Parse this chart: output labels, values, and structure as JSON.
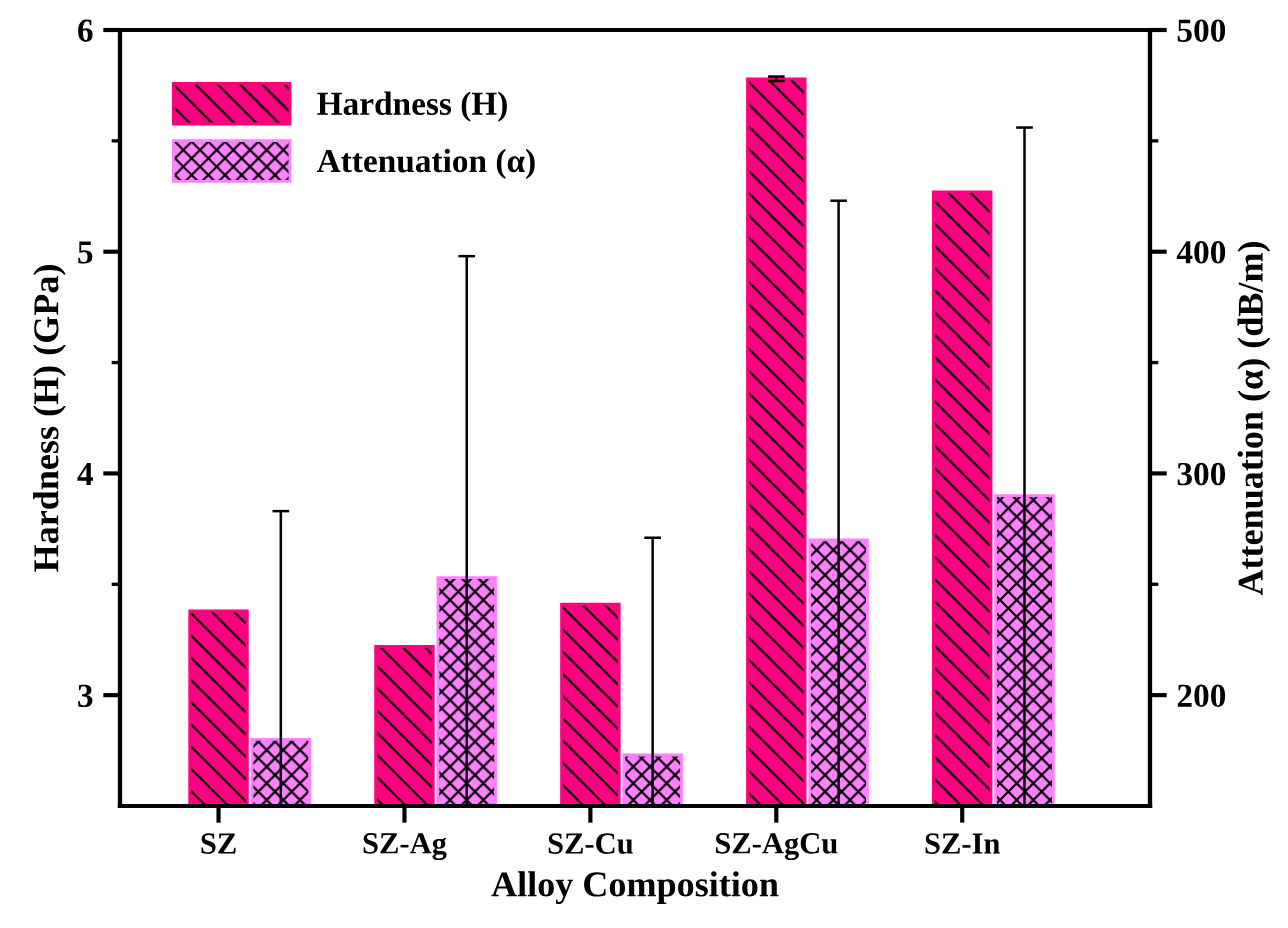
{
  "chart_data": {
    "type": "bar",
    "xlabel": "Alloy Composition",
    "ylabel": "Hardness (H) (GPa)",
    "y2label": "Attenuation (α) (dB/m)",
    "categories": [
      "SZ",
      "SZ-Ag",
      "SZ-Cu",
      "SZ-AgCu",
      "SZ-In"
    ],
    "series": [
      {
        "name": "Hardness (H)",
        "color": "#ff0080",
        "values": [
          3.38,
          3.22,
          3.41,
          5.78,
          5.27
        ],
        "errors": [
          null,
          null,
          null,
          0.01,
          null
        ]
      },
      {
        "name": "Attenuation (α)",
        "color": "#ff80ff",
        "axis": "y2",
        "values": [
          180,
          253,
          173,
          270,
          290
        ],
        "errors": [
          [
            150,
            283
          ],
          [
            150,
            398
          ],
          [
            150,
            271
          ],
          [
            150,
            423
          ],
          [
            150,
            456
          ]
        ]
      }
    ],
    "ylim": [
      2.5,
      6
    ],
    "yticks": [
      3,
      4,
      5,
      6
    ],
    "y2lim": [
      150,
      500
    ],
    "y2ticks": [
      200,
      300,
      400,
      500
    ],
    "legend": "top left",
    "grid": false
  }
}
